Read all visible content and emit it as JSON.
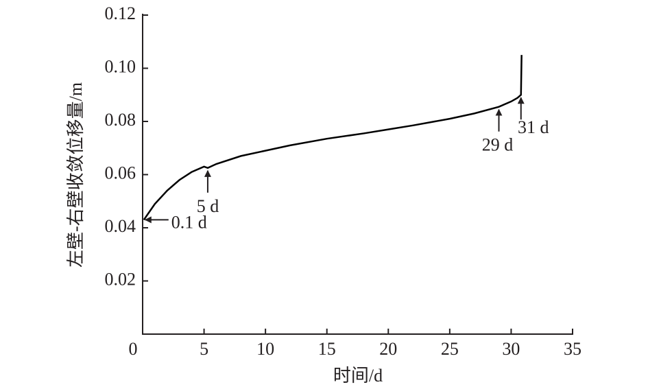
{
  "chart_data": {
    "type": "line",
    "x_label": "时间/d",
    "y_label": "左壁-右壁收敛位移量/m",
    "x": [
      0.1,
      1,
      2,
      3,
      4,
      5,
      5.3,
      6,
      8,
      10,
      12,
      15,
      18,
      20,
      22,
      25,
      27,
      29,
      30,
      30.5,
      30.8,
      30.85
    ],
    "series": [
      {
        "color": "#000000",
        "values": [
          0.043,
          0.049,
          0.054,
          0.058,
          0.061,
          0.063,
          0.0625,
          0.064,
          0.067,
          0.069,
          0.071,
          0.0735,
          0.0755,
          0.077,
          0.0785,
          0.081,
          0.083,
          0.0855,
          0.0875,
          0.0888,
          0.09,
          0.105
        ]
      }
    ],
    "annotations": [
      "0.1 d",
      "5 d",
      "29 d",
      "31 d"
    ],
    "xlim": [
      0,
      35
    ],
    "xticks": [
      0,
      5,
      10,
      15,
      20,
      25,
      30,
      35
    ],
    "ylim": [
      0,
      0.12
    ],
    "yticks": [
      0.02,
      0.04,
      0.06,
      0.08,
      {
        "value": 0.1,
        "label": "0.10"
      },
      0.12
    ]
  }
}
